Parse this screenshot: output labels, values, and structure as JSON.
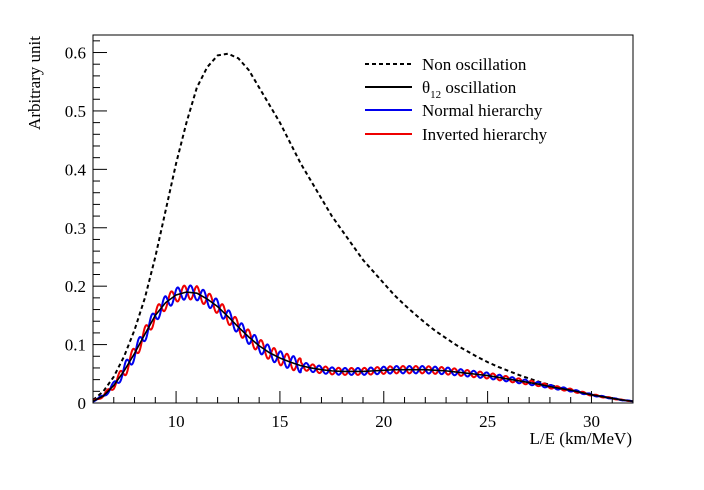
{
  "chart_data": {
    "type": "line",
    "xlabel": "L/E (km/MeV)",
    "ylabel": "Arbitrary unit",
    "xlim": [
      6,
      32
    ],
    "ylim": [
      0,
      0.63
    ],
    "x_ticks": [
      "10",
      "15",
      "20",
      "25",
      "30"
    ],
    "y_ticks": [
      "0",
      "0.1",
      "0.2",
      "0.3",
      "0.4",
      "0.5",
      "0.6"
    ],
    "grid": false,
    "legend_position": "top-right",
    "series": [
      {
        "name": "Non oscillation",
        "color": "#000000",
        "style": "dashed",
        "x": [
          6.0,
          6.5,
          7.0,
          7.5,
          8.0,
          8.5,
          9.0,
          9.5,
          10.0,
          10.5,
          11.0,
          11.5,
          12.0,
          12.5,
          13.0,
          13.5,
          14.0,
          14.5,
          15.0,
          15.5,
          16.0,
          16.5,
          17.0,
          17.5,
          18.0,
          18.5,
          19.0,
          19.5,
          20.0,
          20.5,
          21.0,
          21.5,
          22.0,
          22.5,
          23.0,
          23.5,
          24.0,
          24.5,
          25.0,
          25.5,
          26.0,
          26.5,
          27.0,
          27.5,
          28.0,
          28.5,
          29.0,
          29.5,
          30.0,
          30.5,
          31.0,
          31.5,
          32.0
        ],
        "y": [
          0.005,
          0.02,
          0.045,
          0.08,
          0.125,
          0.18,
          0.25,
          0.33,
          0.41,
          0.48,
          0.54,
          0.575,
          0.595,
          0.598,
          0.59,
          0.57,
          0.54,
          0.51,
          0.48,
          0.445,
          0.41,
          0.38,
          0.35,
          0.32,
          0.295,
          0.27,
          0.245,
          0.225,
          0.205,
          0.185,
          0.168,
          0.152,
          0.137,
          0.123,
          0.111,
          0.099,
          0.089,
          0.079,
          0.07,
          0.062,
          0.055,
          0.048,
          0.042,
          0.036,
          0.031,
          0.026,
          0.022,
          0.018,
          0.014,
          0.011,
          0.008,
          0.005,
          0.003
        ]
      },
      {
        "name": "θ12 oscillation",
        "color": "#000000",
        "style": "solid",
        "x": [
          6.0,
          6.5,
          7.0,
          7.5,
          8.0,
          8.5,
          9.0,
          9.5,
          10.0,
          10.5,
          11.0,
          11.5,
          12.0,
          12.5,
          13.0,
          13.5,
          14.0,
          14.5,
          15.0,
          15.5,
          16.0,
          16.5,
          17.0,
          17.5,
          18.0,
          18.5,
          19.0,
          19.5,
          20.0,
          20.5,
          21.0,
          21.5,
          22.0,
          22.5,
          23.0,
          23.5,
          24.0,
          24.5,
          25.0,
          25.5,
          26.0,
          26.5,
          27.0,
          27.5,
          28.0,
          28.5,
          29.0,
          29.5,
          30.0,
          30.5,
          31.0,
          31.5,
          32.0
        ],
        "y": [
          0.003,
          0.012,
          0.03,
          0.055,
          0.085,
          0.118,
          0.15,
          0.172,
          0.185,
          0.19,
          0.188,
          0.178,
          0.165,
          0.148,
          0.13,
          0.113,
          0.098,
          0.086,
          0.077,
          0.07,
          0.064,
          0.06,
          0.057,
          0.055,
          0.054,
          0.054,
          0.054,
          0.055,
          0.056,
          0.057,
          0.057,
          0.057,
          0.057,
          0.056,
          0.055,
          0.053,
          0.051,
          0.049,
          0.047,
          0.044,
          0.041,
          0.038,
          0.035,
          0.032,
          0.028,
          0.025,
          0.022,
          0.018,
          0.014,
          0.011,
          0.008,
          0.005,
          0.003
        ]
      },
      {
        "name": "Normal hierarchy",
        "color": "#0000ee",
        "style": "solid",
        "wiggle_period": 0.62,
        "wiggle_amplitude": 0.012
      },
      {
        "name": "Inverted hierarchy",
        "color": "#ee0000",
        "style": "solid",
        "wiggle_period": 0.62,
        "wiggle_amplitude": 0.012
      }
    ]
  }
}
